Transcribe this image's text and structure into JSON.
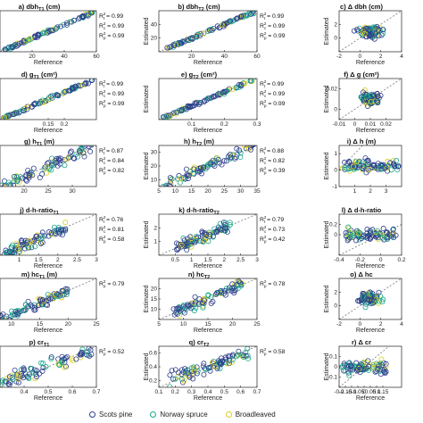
{
  "legend": [
    {
      "name": "Scots pine",
      "color": "#2e3f8c"
    },
    {
      "name": "Norway spruce",
      "color": "#1aa98a"
    },
    {
      "name": "Broadleaved",
      "color": "#d9cf1e"
    }
  ],
  "chart_data": [
    {
      "type": "scatter",
      "title": "a) dbh",
      "title_sub": "T1",
      "title_unit": "(cm)",
      "xlabel": "Reference",
      "ylabel": "",
      "xlim": [
        0,
        60
      ],
      "ylim": [
        0,
        60
      ],
      "xticks": [
        20,
        40,
        60
      ],
      "yticks": [],
      "r2": [
        {
          "label": "R",
          "sub": "t",
          "val": "0.99"
        },
        {
          "label": "R",
          "sub": "c",
          "val": "0.99"
        },
        {
          "label": "R",
          "sub": "p",
          "val": "0.99"
        }
      ],
      "pattern": "linear",
      "slope": 1,
      "noise": 0.03,
      "xrange": [
        2,
        58
      ]
    },
    {
      "type": "scatter",
      "title": "b) dbh",
      "title_sub": "T2",
      "title_unit": "(cm)",
      "xlabel": "Reference",
      "ylabel": "Estimated",
      "xlim": [
        0,
        60
      ],
      "ylim": [
        0,
        60
      ],
      "xticks": [
        20,
        40,
        60
      ],
      "yticks": [
        20,
        40
      ],
      "r2": [
        {
          "label": "R",
          "sub": "t",
          "val": "0.99"
        },
        {
          "label": "R",
          "sub": "c",
          "val": "0.99"
        },
        {
          "label": "R",
          "sub": "p",
          "val": "0.99"
        }
      ],
      "pattern": "linear",
      "slope": 1,
      "noise": 0.03,
      "xrange": [
        5,
        58
      ]
    },
    {
      "type": "scatter",
      "title": "c) Δ dbh",
      "title_sub": "",
      "title_unit": "(cm)",
      "xlabel": "Reference",
      "ylabel": "Estimated",
      "xlim": [
        -2,
        4
      ],
      "ylim": [
        -2,
        4
      ],
      "xticks": [
        -2,
        0,
        2,
        4
      ],
      "yticks": [
        0,
        2
      ],
      "r2": [],
      "pattern": "blob",
      "xrange": [
        -1.5,
        3.5
      ]
    },
    {
      "type": "scatter",
      "title": "d) g",
      "title_sub": "T1",
      "title_unit": "(cm²)",
      "xlabel": "Reference",
      "ylabel": "",
      "xlim": [
        0,
        0.3
      ],
      "ylim": [
        0,
        0.3
      ],
      "xticks": [
        0.15,
        0.2
      ],
      "yticks": [],
      "r2": [
        {
          "label": "R",
          "sub": "t",
          "val": "0.99"
        },
        {
          "label": "R",
          "sub": "c",
          "val": "0.99"
        },
        {
          "label": "R",
          "sub": "p",
          "val": "0.99"
        }
      ],
      "pattern": "linear",
      "slope": 1,
      "noise": 0.03,
      "xrange": [
        0.01,
        0.29
      ]
    },
    {
      "type": "scatter",
      "title": "e) g",
      "title_sub": "T2",
      "title_unit": "(cm²)",
      "xlabel": "Reference",
      "ylabel": "Estimated",
      "xlim": [
        0,
        0.3
      ],
      "ylim": [
        0,
        0.3
      ],
      "xticks": [
        0.1,
        0.2,
        0.3
      ],
      "yticks": [],
      "r2": [
        {
          "label": "R",
          "sub": "t",
          "val": "0.99"
        },
        {
          "label": "R",
          "sub": "c",
          "val": "0.99"
        },
        {
          "label": "R",
          "sub": "p",
          "val": "0.99"
        }
      ],
      "pattern": "linear",
      "slope": 1,
      "noise": 0.03,
      "xrange": [
        0.01,
        0.29
      ]
    },
    {
      "type": "scatter",
      "title": "f) Δ g",
      "title_sub": "",
      "title_unit": "(cm²)",
      "xlabel": "Reference",
      "ylabel": "Estimated",
      "xlim": [
        -0.01,
        0.03
      ],
      "ylim": [
        -0.01,
        0.03
      ],
      "xticks": [
        -0.01,
        0,
        0.01,
        0.02
      ],
      "yticks": [
        0,
        0.02
      ],
      "r2": [],
      "pattern": "blob",
      "xrange": [
        -0.005,
        0.025
      ]
    },
    {
      "type": "scatter",
      "title": "g) h",
      "title_sub": "T1",
      "title_unit": "(m)",
      "xlabel": "",
      "ylabel": "",
      "xlim": [
        15,
        35
      ],
      "ylim": [
        15,
        35
      ],
      "xticks": [
        20,
        25,
        30
      ],
      "yticks": [],
      "r2": [
        {
          "label": "R",
          "sub": "t",
          "val": "0.87"
        },
        {
          "label": "R",
          "sub": "c",
          "val": "0.84"
        },
        {
          "label": "R",
          "sub": "p",
          "val": "0.82"
        }
      ],
      "pattern": "linear",
      "slope": 1,
      "noise": 0.12,
      "xrange": [
        15,
        34
      ]
    },
    {
      "type": "scatter",
      "title": "h) h",
      "title_sub": "T2",
      "title_unit": "(m)",
      "xlabel": "",
      "ylabel": "Estimated",
      "xlim": [
        5,
        35
      ],
      "ylim": [
        5,
        35
      ],
      "xticks": [
        5,
        10,
        15,
        20,
        25,
        30,
        35
      ],
      "yticks": [
        10,
        20,
        30
      ],
      "r2": [
        {
          "label": "R",
          "sub": "t",
          "val": "0.88"
        },
        {
          "label": "R",
          "sub": "c",
          "val": "0.82"
        },
        {
          "label": "R",
          "sub": "p",
          "val": "0.39"
        }
      ],
      "pattern": "linear",
      "slope": 1,
      "noise": 0.12,
      "xrange": [
        6,
        34
      ]
    },
    {
      "type": "scatter",
      "title": "i) Δ h",
      "title_sub": "",
      "title_unit": "(m)",
      "xlabel": "",
      "ylabel": "Estimated",
      "xlim": [
        0,
        4
      ],
      "ylim": [
        -1,
        1.5
      ],
      "xticks": [
        1,
        2,
        3
      ],
      "yticks": [
        -1,
        0,
        1
      ],
      "r2": [],
      "pattern": "flat",
      "xrange": [
        0.2,
        3.8
      ]
    },
    {
      "type": "scatter",
      "title": "j) d-h-ratio",
      "title_sub": "T1",
      "title_unit": "",
      "xlabel": "Reference",
      "ylabel": "",
      "xlim": [
        0.5,
        3
      ],
      "ylim": [
        0.5,
        3
      ],
      "xticks": [
        1,
        1.5,
        2,
        2.5,
        3
      ],
      "yticks": [],
      "r2": [
        {
          "label": "R",
          "sub": "t",
          "val": "0.76"
        },
        {
          "label": "R",
          "sub": "c",
          "val": "0.81"
        },
        {
          "label": "R",
          "sub": "p",
          "val": "0.58"
        }
      ],
      "pattern": "linear",
      "slope": 1,
      "noise": 0.12,
      "xrange": [
        0.6,
        2.2
      ]
    },
    {
      "type": "scatter",
      "title": "k) d-h-ratio",
      "title_sub": "T2",
      "title_unit": "",
      "xlabel": "Reference",
      "ylabel": "Estimated",
      "xlim": [
        0,
        3
      ],
      "ylim": [
        0,
        3
      ],
      "xticks": [
        0.5,
        1,
        1.5,
        2,
        2.5,
        3
      ],
      "yticks": [
        1,
        2
      ],
      "r2": [
        {
          "label": "R",
          "sub": "t",
          "val": "0.79"
        },
        {
          "label": "R",
          "sub": "c",
          "val": "0.73"
        },
        {
          "label": "R",
          "sub": "p",
          "val": "0.42"
        }
      ],
      "pattern": "linear",
      "slope": 1,
      "noise": 0.12,
      "xrange": [
        0.5,
        2.2
      ]
    },
    {
      "type": "scatter",
      "title": "l) Δ d-h-ratio",
      "title_sub": "",
      "title_unit": "",
      "xlabel": "Reference",
      "ylabel": "Estimated",
      "xlim": [
        -0.4,
        0.2
      ],
      "ylim": [
        -0.4,
        0.4
      ],
      "xticks": [
        -0.4,
        -0.2,
        0,
        0.2
      ],
      "yticks": [
        0,
        0.2
      ],
      "r2": [],
      "pattern": "flat",
      "xrange": [
        -0.35,
        0.15
      ]
    },
    {
      "type": "scatter",
      "title": "m) hc",
      "title_sub": "T1",
      "title_unit": "(m)",
      "xlabel": "Reference",
      "ylabel": "",
      "xlim": [
        8,
        25
      ],
      "ylim": [
        8,
        25
      ],
      "xticks": [
        10,
        15,
        20,
        25
      ],
      "yticks": [],
      "r2": [
        {
          "label": "R",
          "sub": "p",
          "val": "0.79"
        }
      ],
      "pattern": "linear",
      "slope": 1,
      "noise": 0.1,
      "xrange": [
        8,
        20
      ]
    },
    {
      "type": "scatter",
      "title": "n) hc",
      "title_sub": "T2",
      "title_unit": "",
      "xlabel": "Reference",
      "ylabel": "Estimated",
      "xlim": [
        5,
        25
      ],
      "ylim": [
        5,
        25
      ],
      "xticks": [
        5,
        10,
        15,
        20,
        25
      ],
      "yticks": [
        10,
        15,
        20
      ],
      "r2": [
        {
          "label": "R",
          "sub": "p",
          "val": "0.78"
        }
      ],
      "pattern": "linear",
      "slope": 1,
      "noise": 0.12,
      "xrange": [
        8,
        22
      ]
    },
    {
      "type": "scatter",
      "title": "o) Δ hc",
      "title_sub": "",
      "title_unit": "",
      "xlabel": "Reference",
      "ylabel": "Estimated",
      "xlim": [
        -2,
        4
      ],
      "ylim": [
        -2,
        4
      ],
      "xticks": [
        -2,
        0,
        2,
        4
      ],
      "yticks": [
        0,
        2
      ],
      "r2": [],
      "pattern": "blob",
      "xrange": [
        -1.5,
        3.5
      ]
    },
    {
      "type": "scatter",
      "title": "p) cr",
      "title_sub": "T1",
      "title_unit": "",
      "xlabel": "Reference",
      "ylabel": "",
      "xlim": [
        0.3,
        0.7
      ],
      "ylim": [
        0.3,
        0.7
      ],
      "xticks": [
        0.4,
        0.5,
        0.6,
        0.7
      ],
      "yticks": [],
      "r2": [
        {
          "label": "R",
          "sub": "p",
          "val": "0.52"
        }
      ],
      "pattern": "linear",
      "slope": 0.8,
      "noise": 0.15,
      "xrange": [
        0.3,
        0.68
      ]
    },
    {
      "type": "scatter",
      "title": "q) cr",
      "title_sub": "T2",
      "title_unit": "",
      "xlabel": "Reference",
      "ylabel": "Estimated",
      "xlim": [
        0.1,
        0.7
      ],
      "ylim": [
        0.1,
        0.7
      ],
      "xticks": [
        0.1,
        0.2,
        0.3,
        0.4,
        0.5,
        0.6,
        0.7
      ],
      "yticks": [
        0.2,
        0.4,
        0.6
      ],
      "r2": [
        {
          "label": "R",
          "sub": "p",
          "val": "0.58"
        }
      ],
      "pattern": "linear",
      "slope": 0.8,
      "noise": 0.15,
      "xrange": [
        0.15,
        0.65
      ]
    },
    {
      "type": "scatter",
      "title": "r) Δ cr",
      "title_sub": "",
      "title_unit": "",
      "xlabel": "Reference",
      "ylabel": "Estimated",
      "xlim": [
        -0.2,
        0.3
      ],
      "ylim": [
        -0.2,
        0.2
      ],
      "xticks": [
        -0.2,
        -0.15,
        -0.1,
        -0.05,
        0,
        0.05,
        0.1,
        0.15
      ],
      "yticks": [
        -0.1,
        0,
        0.1
      ],
      "r2": [],
      "pattern": "flat",
      "xrange": [
        -0.18,
        0.18
      ]
    }
  ]
}
